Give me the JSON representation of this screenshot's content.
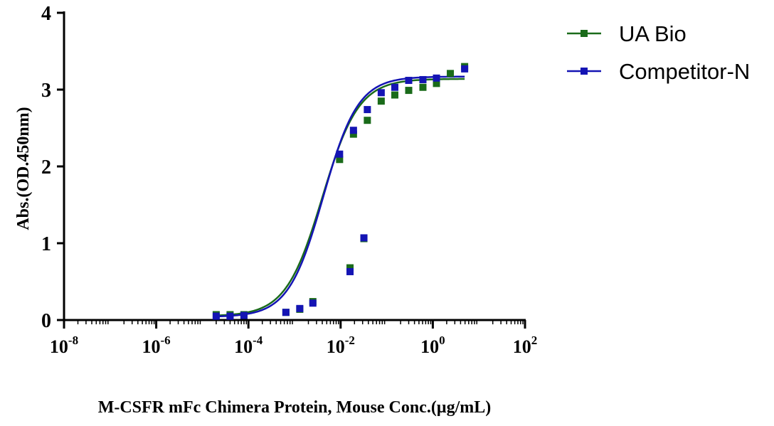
{
  "chart_data": {
    "type": "scatter",
    "title": "",
    "xlabel": "M-CSFR mFc Chimera Protein, Mouse Conc.(µg/mL)",
    "ylabel": "Abs.(OD.450nm)",
    "xscale": "log10",
    "xlim": [
      1e-08,
      100
    ],
    "ylim": [
      0,
      4
    ],
    "x_ticks": [
      {
        "value": 1e-08,
        "base": "10",
        "exp": "-8"
      },
      {
        "value": 1e-06,
        "base": "10",
        "exp": "-6"
      },
      {
        "value": 0.0001,
        "base": "10",
        "exp": "-4"
      },
      {
        "value": 0.01,
        "base": "10",
        "exp": "-2"
      },
      {
        "value": 1,
        "base": "10",
        "exp": "0"
      },
      {
        "value": 100,
        "base": "10",
        "exp": "2"
      }
    ],
    "y_ticks": [
      0,
      1,
      2,
      3,
      4
    ],
    "grid": false,
    "legend_position": "top-right",
    "series": [
      {
        "name": "UA Bio",
        "color": "#1a6b1a",
        "marker": "square",
        "fit": {
          "bottom": 0.05,
          "top": 3.14,
          "ec50": 0.004,
          "hill": 1.1
        },
        "points": [
          [
            2e-05,
            0.07
          ],
          [
            4e-05,
            0.07
          ],
          [
            8e-05,
            0.07
          ],
          [
            0.00065,
            0.1
          ],
          [
            0.0013,
            0.14
          ],
          [
            0.0025,
            0.24
          ],
          [
            0.016,
            0.68
          ],
          [
            0.032,
            1.06
          ],
          [
            0.0095,
            2.09
          ],
          [
            0.019,
            2.42
          ],
          [
            0.038,
            2.6
          ],
          [
            0.076,
            2.85
          ],
          [
            0.15,
            2.93
          ],
          [
            0.3,
            2.99
          ],
          [
            0.61,
            3.03
          ],
          [
            1.2,
            3.08
          ],
          [
            2.4,
            3.21
          ],
          [
            4.9,
            3.3
          ]
        ]
      },
      {
        "name": "Competitor-N",
        "color": "#1414b4",
        "marker": "square",
        "fit": {
          "bottom": 0.04,
          "top": 3.17,
          "ec50": 0.0042,
          "hill": 1.15
        },
        "points": [
          [
            2e-05,
            0.05
          ],
          [
            4e-05,
            0.05
          ],
          [
            8e-05,
            0.06
          ],
          [
            0.00065,
            0.1
          ],
          [
            0.0013,
            0.15
          ],
          [
            0.0025,
            0.22
          ],
          [
            0.016,
            0.63
          ],
          [
            0.032,
            1.07
          ],
          [
            0.0095,
            2.16
          ],
          [
            0.019,
            2.47
          ],
          [
            0.038,
            2.74
          ],
          [
            0.076,
            2.96
          ],
          [
            0.15,
            3.03
          ],
          [
            0.3,
            3.12
          ],
          [
            0.61,
            3.13
          ],
          [
            1.2,
            3.15
          ],
          [
            4.9,
            3.27
          ]
        ]
      }
    ]
  }
}
